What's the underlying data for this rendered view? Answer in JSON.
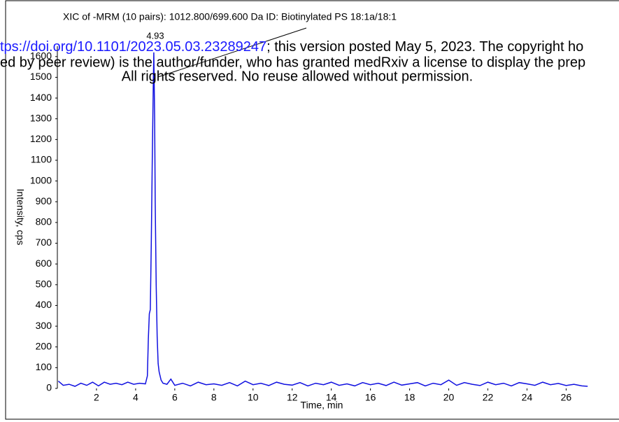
{
  "chart_data": {
    "type": "line",
    "title": "XIC of -MRM (10 pairs): 1012.800/699.600 Da ID: Biotinylated PS 18:1a/18:1",
    "annotation": "4.93",
    "xlabel": "Time, min",
    "ylabel": "Intensity, cps",
    "watermark": {
      "link": "tps://doi.org/10.1101/2023.05.03.23289247",
      "line1": "; this version posted May 5, 2023. The copyright ho",
      "line2": "ed by peer review) is the author/funder, who has granted medRxiv a license to display the prep",
      "line3": "All rights reserved. No reuse allowed without permission."
    },
    "x": [
      0.05,
      0.3,
      0.6,
      0.9,
      1.2,
      1.5,
      1.8,
      2.1,
      2.4,
      2.7,
      3.0,
      3.3,
      3.6,
      3.9,
      4.2,
      4.5,
      4.6,
      4.65,
      4.7,
      4.75,
      4.8,
      4.85,
      4.9,
      4.93,
      4.97,
      5.0,
      5.05,
      5.1,
      5.15,
      5.2,
      5.3,
      5.4,
      5.6,
      5.8,
      6.0,
      6.4,
      6.8,
      7.2,
      7.6,
      8.0,
      8.4,
      8.8,
      9.2,
      9.6,
      10.0,
      10.4,
      10.8,
      11.2,
      11.6,
      12.0,
      12.4,
      12.8,
      13.2,
      13.6,
      14.0,
      14.4,
      14.8,
      15.2,
      15.6,
      16.0,
      16.4,
      16.8,
      17.2,
      17.6,
      18.0,
      18.4,
      18.8,
      19.2,
      19.6,
      20.0,
      20.4,
      20.8,
      21.2,
      21.6,
      22.0,
      22.4,
      22.8,
      23.2,
      23.6,
      24.0,
      24.4,
      24.8,
      25.2,
      25.6,
      26.0,
      26.4,
      26.8,
      27.1
    ],
    "series": [
      {
        "name": "XIC",
        "color": "#1010e0",
        "values": [
          35,
          15,
          20,
          10,
          25,
          15,
          30,
          12,
          30,
          20,
          25,
          18,
          30,
          20,
          25,
          22,
          60,
          240,
          360,
          380,
          700,
          1100,
          1450,
          1620,
          1300,
          900,
          500,
          250,
          120,
          80,
          40,
          25,
          20,
          45,
          15,
          25,
          12,
          30,
          18,
          22,
          15,
          28,
          12,
          35,
          18,
          25,
          14,
          30,
          20,
          16,
          28,
          12,
          25,
          18,
          30,
          15,
          22,
          12,
          28,
          18,
          25,
          14,
          30,
          16,
          22,
          28,
          12,
          25,
          18,
          40,
          15,
          28,
          20,
          14,
          30,
          18,
          25,
          12,
          28,
          22,
          15,
          30,
          18,
          24,
          14,
          20,
          12,
          10
        ]
      }
    ],
    "xlim": [
      0,
      27.2
    ],
    "ylim": [
      0,
      1650
    ],
    "xticks": [
      2,
      4,
      6,
      8,
      10,
      12,
      14,
      16,
      18,
      20,
      22,
      24,
      26
    ],
    "yticks": [
      0,
      100,
      200,
      300,
      400,
      500,
      600,
      700,
      800,
      900,
      1000,
      1100,
      1200,
      1300,
      1400,
      1500,
      1600
    ]
  }
}
